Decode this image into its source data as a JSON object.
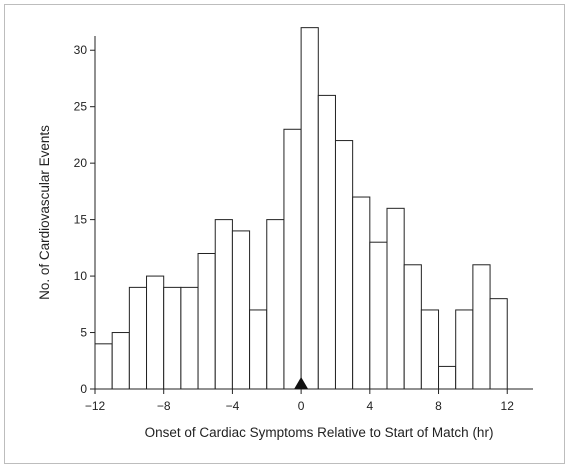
{
  "chart_data": {
    "type": "bar",
    "title": "",
    "xlabel": "Onset of Cardiac Symptoms Relative to Start of Match (hr)",
    "ylabel": "No. of Cardiovascular Events",
    "bin_width": 1,
    "bin_starts": [
      -12,
      -11,
      -10,
      -9,
      -8,
      -7,
      -6,
      -5,
      -4,
      -3,
      -2,
      -1,
      0,
      1,
      2,
      3,
      4,
      5,
      6,
      7,
      8,
      9,
      10,
      11
    ],
    "values": [
      4,
      5,
      9,
      10,
      9,
      9,
      12,
      15,
      14,
      7,
      15,
      23,
      32,
      26,
      22,
      17,
      13,
      16,
      11,
      7,
      2,
      7,
      11,
      8
    ],
    "xlim": [
      -12,
      13.5
    ],
    "ylim": [
      0,
      32.5
    ],
    "x_ticks": [
      -12,
      -8,
      -4,
      0,
      4,
      8,
      12
    ],
    "x_tick_labels": [
      "−12",
      "−8",
      "−4",
      "0",
      "4",
      "8",
      "12"
    ],
    "y_ticks": [
      0,
      5,
      10,
      15,
      20,
      25,
      30
    ],
    "y_tick_labels": [
      "0",
      "5",
      "10",
      "15",
      "20",
      "25",
      "30"
    ],
    "marker": {
      "x": 0,
      "shape": "triangle",
      "color": "#111111"
    },
    "grid": false,
    "legend": "none"
  }
}
